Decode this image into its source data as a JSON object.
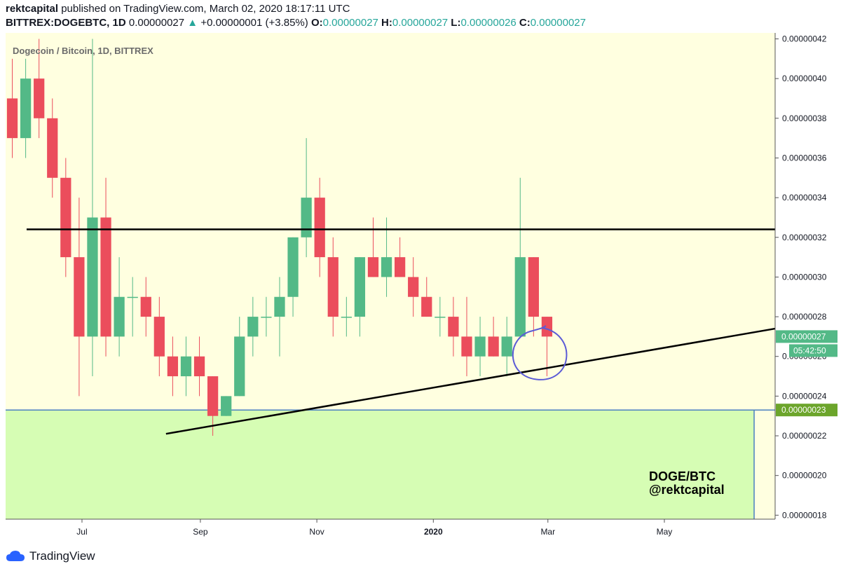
{
  "header": {
    "author": "rektcapital",
    "published_text": "published on TradingView.com, March 02, 2020 18:17:11 UTC",
    "symbol": "BITTREX:DOGEBTC, 1D",
    "last_price": "0.00000027",
    "change_arrow": "▲",
    "change": "+0.00000001 (+3.85%)",
    "o_label": "O:",
    "o_value": "0.00000027",
    "h_label": "H:",
    "h_value": "0.00000027",
    "l_label": "L:",
    "l_value": "0.00000026",
    "c_label": "C:",
    "c_value": "0.00000027"
  },
  "chart_data": {
    "type": "candlestick",
    "title": "Dogecoin / Bitcoin, 1D, BITTREX",
    "x_labels": [
      "Jul",
      "Sep",
      "Nov",
      "2020",
      "Mar",
      "May"
    ],
    "x_label_dates": [
      "2019-07-01",
      "2019-09-01",
      "2019-11-01",
      "2020-01-01",
      "2020-03-01",
      "2020-05-01"
    ],
    "x_range": [
      "2019-05-22",
      "2020-06-28"
    ],
    "y_ticks": [
      "0.00000018",
      "0.00000020",
      "0.00000022",
      "0.00000024",
      "0.00000026",
      "0.00000028",
      "0.00000030",
      "0.00000032",
      "0.00000034",
      "0.00000036",
      "0.00000038",
      "0.00000040",
      "0.00000042"
    ],
    "y_tick_values": [
      18,
      20,
      22,
      24,
      26,
      28,
      30,
      32,
      34,
      36,
      38,
      40,
      42
    ],
    "y_unit_scale": "1e-8 BTC",
    "ylim": [
      17.8,
      42.3
    ],
    "grid": false,
    "current_price_label": "0.00000027",
    "countdown_label": "05:42:50",
    "support_zone_label": "0.00000023",
    "annotation_lines": [
      "DOGE/BTC",
      "@rektcapital"
    ],
    "overlays": {
      "horizontal_resistance": {
        "price": 32.4,
        "from": "2019-06-02",
        "to": "2020-06-28"
      },
      "rising_trendline": {
        "from": {
          "date": "2019-08-14",
          "price": 22.1
        },
        "to": {
          "date": "2020-06-28",
          "price": 27.4
        }
      },
      "support_zone": {
        "top": 23.3,
        "bottom": 17.8,
        "from": "2019-05-22",
        "to": "2020-06-17"
      },
      "circle_highlight": {
        "center_date": "2020-02-26",
        "center_price": 26.1
      }
    },
    "candles_weekly_ohlc": [
      {
        "date": "2019-05-22",
        "o": 39,
        "h": 41,
        "l": 36,
        "c": 37
      },
      {
        "date": "2019-05-29",
        "o": 37,
        "h": 41,
        "l": 36,
        "c": 40
      },
      {
        "date": "2019-06-05",
        "o": 40,
        "h": 42,
        "l": 37,
        "c": 38
      },
      {
        "date": "2019-06-12",
        "o": 38,
        "h": 39,
        "l": 34,
        "c": 35
      },
      {
        "date": "2019-06-19",
        "o": 35,
        "h": 36,
        "l": 30,
        "c": 31
      },
      {
        "date": "2019-06-26",
        "o": 31,
        "h": 34,
        "l": 24,
        "c": 27
      },
      {
        "date": "2019-07-03",
        "o": 27,
        "h": 42,
        "l": 25,
        "c": 33
      },
      {
        "date": "2019-07-10",
        "o": 33,
        "h": 35,
        "l": 26,
        "c": 27
      },
      {
        "date": "2019-07-17",
        "o": 27,
        "h": 31,
        "l": 26,
        "c": 29
      },
      {
        "date": "2019-07-24",
        "o": 29,
        "h": 30,
        "l": 27,
        "c": 29
      },
      {
        "date": "2019-07-31",
        "o": 29,
        "h": 30,
        "l": 27,
        "c": 28
      },
      {
        "date": "2019-08-07",
        "o": 28,
        "h": 29,
        "l": 25,
        "c": 26
      },
      {
        "date": "2019-08-14",
        "o": 26,
        "h": 27,
        "l": 24,
        "c": 25
      },
      {
        "date": "2019-08-21",
        "o": 25,
        "h": 27,
        "l": 24,
        "c": 26
      },
      {
        "date": "2019-08-28",
        "o": 26,
        "h": 27,
        "l": 24,
        "c": 25
      },
      {
        "date": "2019-09-04",
        "o": 25,
        "h": 25,
        "l": 22,
        "c": 23
      },
      {
        "date": "2019-09-11",
        "o": 23,
        "h": 24,
        "l": 23,
        "c": 24
      },
      {
        "date": "2019-09-18",
        "o": 24,
        "h": 28,
        "l": 24,
        "c": 27
      },
      {
        "date": "2019-09-25",
        "o": 27,
        "h": 29,
        "l": 26,
        "c": 28
      },
      {
        "date": "2019-10-02",
        "o": 28,
        "h": 29,
        "l": 27,
        "c": 28
      },
      {
        "date": "2019-10-09",
        "o": 28,
        "h": 30,
        "l": 26,
        "c": 29
      },
      {
        "date": "2019-10-16",
        "o": 29,
        "h": 32,
        "l": 28,
        "c": 32
      },
      {
        "date": "2019-10-23",
        "o": 32,
        "h": 37,
        "l": 31,
        "c": 34
      },
      {
        "date": "2019-10-30",
        "o": 34,
        "h": 35,
        "l": 30,
        "c": 31
      },
      {
        "date": "2019-11-06",
        "o": 31,
        "h": 32,
        "l": 27,
        "c": 28
      },
      {
        "date": "2019-11-13",
        "o": 28,
        "h": 29,
        "l": 27,
        "c": 28
      },
      {
        "date": "2019-11-20",
        "o": 28,
        "h": 31,
        "l": 27,
        "c": 31
      },
      {
        "date": "2019-11-27",
        "o": 31,
        "h": 33,
        "l": 30,
        "c": 30
      },
      {
        "date": "2019-12-04",
        "o": 30,
        "h": 33,
        "l": 29,
        "c": 31
      },
      {
        "date": "2019-12-11",
        "o": 31,
        "h": 32,
        "l": 30,
        "c": 30
      },
      {
        "date": "2019-12-18",
        "o": 30,
        "h": 31,
        "l": 28,
        "c": 29
      },
      {
        "date": "2019-12-25",
        "o": 29,
        "h": 30,
        "l": 28,
        "c": 28
      },
      {
        "date": "2020-01-01",
        "o": 28,
        "h": 29,
        "l": 27,
        "c": 28
      },
      {
        "date": "2020-01-08",
        "o": 28,
        "h": 29,
        "l": 26,
        "c": 27
      },
      {
        "date": "2020-01-15",
        "o": 27,
        "h": 29,
        "l": 25,
        "c": 26
      },
      {
        "date": "2020-01-22",
        "o": 26,
        "h": 28,
        "l": 25,
        "c": 27
      },
      {
        "date": "2020-01-29",
        "o": 27,
        "h": 28,
        "l": 26,
        "c": 26
      },
      {
        "date": "2020-02-05",
        "o": 26,
        "h": 28,
        "l": 25,
        "c": 27
      },
      {
        "date": "2020-02-12",
        "o": 27,
        "h": 35,
        "l": 27,
        "c": 31
      },
      {
        "date": "2020-02-19",
        "o": 31,
        "h": 31,
        "l": 27,
        "c": 28
      },
      {
        "date": "2020-02-26",
        "o": 28,
        "h": 28,
        "l": 25,
        "c": 27
      }
    ]
  },
  "colors": {
    "up": "#53b987",
    "down": "#eb4d5c",
    "background": "#ffffe0",
    "support_fill": "#d6fdb4",
    "support_border": "#4a7fc1",
    "trendline": "#000000",
    "circle": "#5b5bd6",
    "current_price_tag": "#53b987",
    "support_tag": "#6ca52b"
  },
  "footer": {
    "brand": "TradingView",
    "brand_icon": "cloud-icon"
  }
}
